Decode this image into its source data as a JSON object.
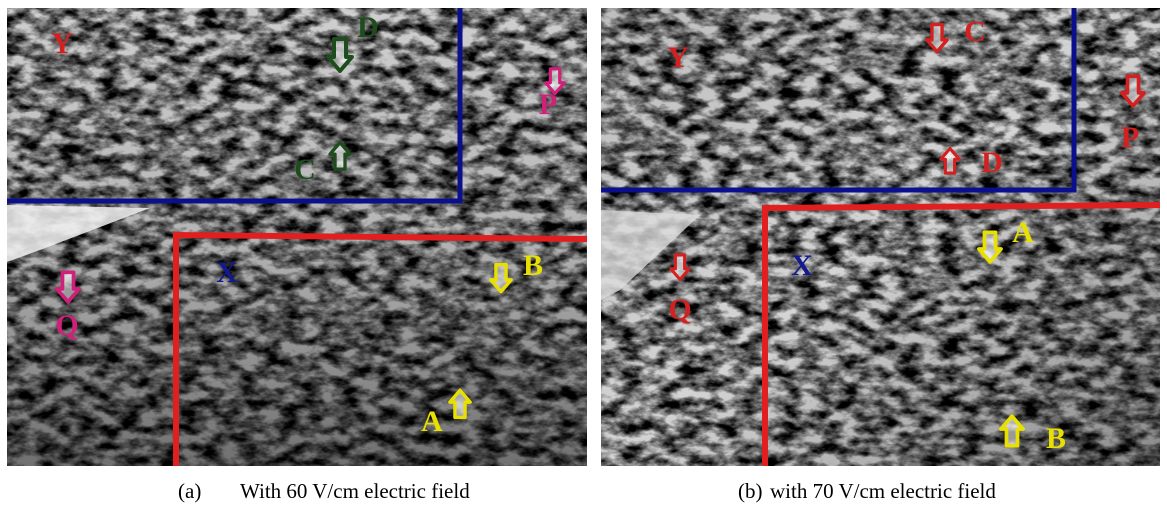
{
  "panels": [
    {
      "caption": {
        "tag": "(a)",
        "text": "With 60 V/cm electric field"
      },
      "labels": {
        "Y": "Y",
        "D": "D",
        "P": "P",
        "C": "C",
        "X": "X",
        "B": "B",
        "Q": "Q",
        "A": "A"
      }
    },
    {
      "caption": {
        "tag": "(b)",
        "text": "with 70 V/cm electric field"
      },
      "labels": {
        "Y": "Y",
        "C": "C",
        "P": "P",
        "D": "D",
        "X": "X",
        "A": "A",
        "Q": "Q",
        "B": "B"
      }
    }
  ]
}
